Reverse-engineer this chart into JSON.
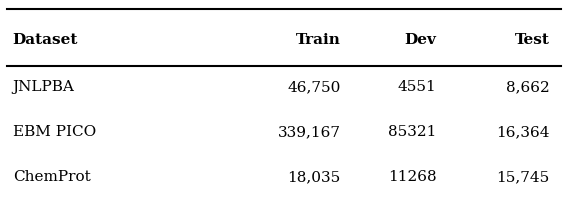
{
  "headers": [
    "Dataset",
    "Train",
    "Dev",
    "Test"
  ],
  "rows": [
    [
      "JNLPBA",
      "46,750",
      "4551",
      "8,662"
    ],
    [
      "EBM PICO",
      "339,167",
      "85321",
      "16,364"
    ],
    [
      "ChemProt",
      "18,035",
      "11268",
      "15,745"
    ]
  ],
  "background_color": "#ffffff",
  "text_color": "#000000",
  "fontsize": 11,
  "figsize": [
    5.68,
    1.98
  ],
  "dpi": 100
}
